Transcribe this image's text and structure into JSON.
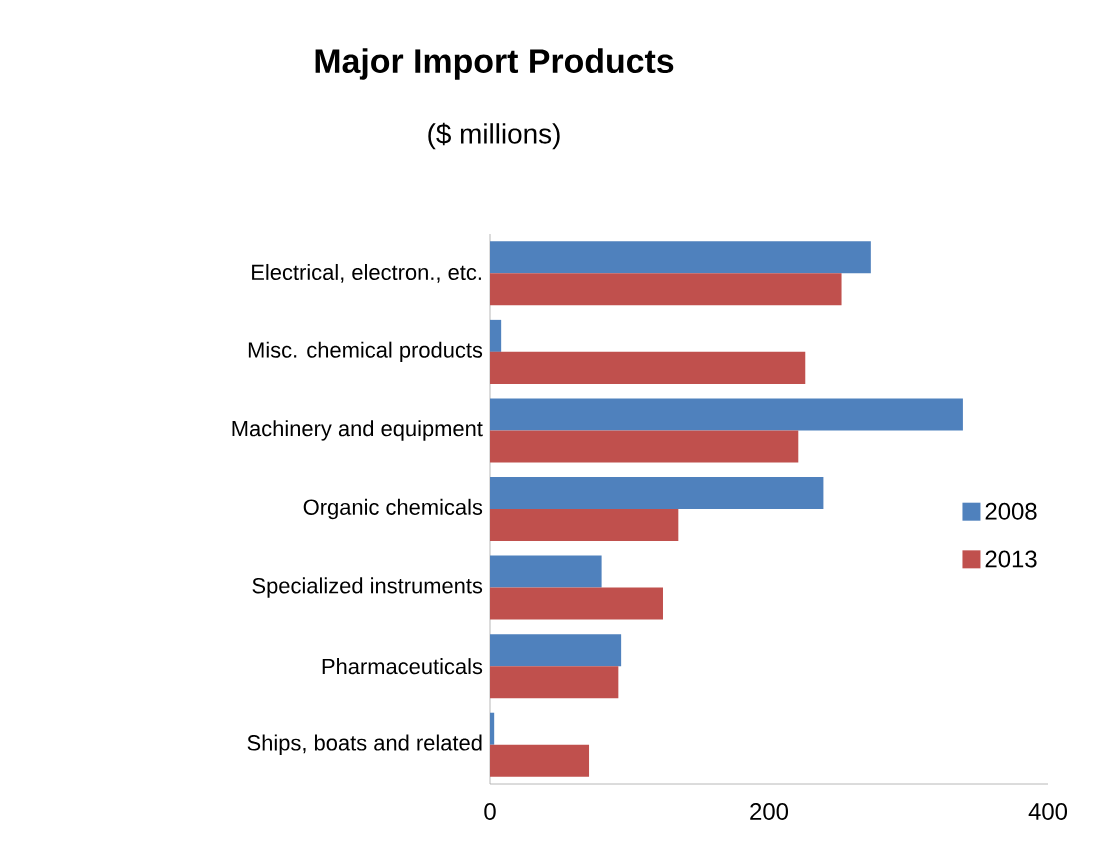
{
  "chart_data": {
    "type": "bar",
    "orientation": "horizontal",
    "title": "Major Import Products",
    "subtitle": "($ millions)",
    "categories": [
      "Electrical, electron., etc.",
      "Misc. chemical products",
      "Machinery and equipment",
      "Organic chemicals",
      "Specialized instruments",
      "Pharmaceuticals",
      "Ships, boats and related"
    ],
    "series": [
      {
        "name": "2008",
        "color": "#4f81bd",
        "values": [
          273,
          8,
          339,
          239,
          80,
          94,
          3
        ]
      },
      {
        "name": "2013",
        "color": "#c0504d",
        "values": [
          252,
          226,
          221,
          135,
          124,
          92,
          71
        ]
      }
    ],
    "xlim": [
      0,
      400
    ],
    "xticks": [
      0,
      200,
      400
    ],
    "grid": false,
    "legend": "right"
  }
}
